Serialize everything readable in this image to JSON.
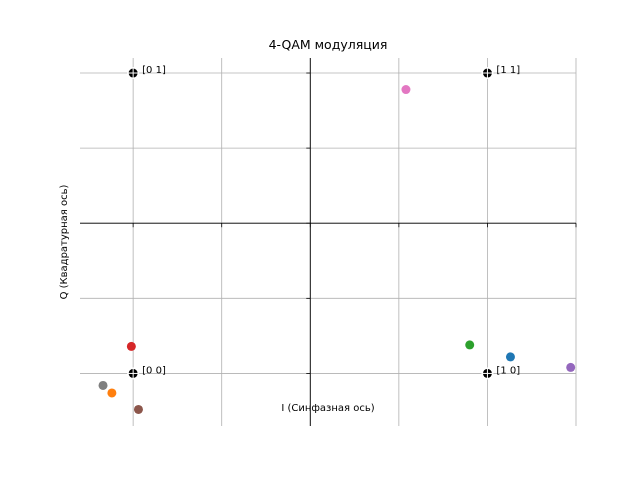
{
  "chart_data": {
    "type": "scatter",
    "title": "4-QAM модуляция",
    "xlabel": "I (Синфазная ось)",
    "ylabel": "Q (Квадратурная ось)",
    "xlim": [
      -1.3,
      1.5
    ],
    "ylim": [
      -1.35,
      1.1
    ],
    "x_gridlines": [
      -1.0,
      -0.5,
      0.0,
      0.5,
      1.0,
      1.5
    ],
    "y_gridlines": [
      -1.0,
      -0.5,
      0.0,
      0.5,
      1.0
    ],
    "grid": true,
    "spines": "centered at origin",
    "ideal_points": [
      {
        "label": "[0 1]",
        "x": -1.0,
        "y": 1.0
      },
      {
        "label": "[1 1]",
        "x": 1.0,
        "y": 1.0
      },
      {
        "label": "[0 0]",
        "x": -1.0,
        "y": -1.0
      },
      {
        "label": "[1 0]",
        "x": 1.0,
        "y": -1.0
      }
    ],
    "ideal_color": "#000000",
    "received_points": [
      {
        "x": 1.13,
        "y": -0.89,
        "color": "#1f77b4"
      },
      {
        "x": -1.12,
        "y": -1.13,
        "color": "#ff7f0e"
      },
      {
        "x": 0.9,
        "y": -0.81,
        "color": "#2ca02c"
      },
      {
        "x": -1.01,
        "y": -0.82,
        "color": "#d62728"
      },
      {
        "x": 1.47,
        "y": -0.96,
        "color": "#9467bd"
      },
      {
        "x": -0.97,
        "y": -1.24,
        "color": "#8c564b"
      },
      {
        "x": 0.54,
        "y": 0.89,
        "color": "#e377c2"
      },
      {
        "x": -1.17,
        "y": -1.08,
        "color": "#7f7f7f"
      }
    ]
  }
}
